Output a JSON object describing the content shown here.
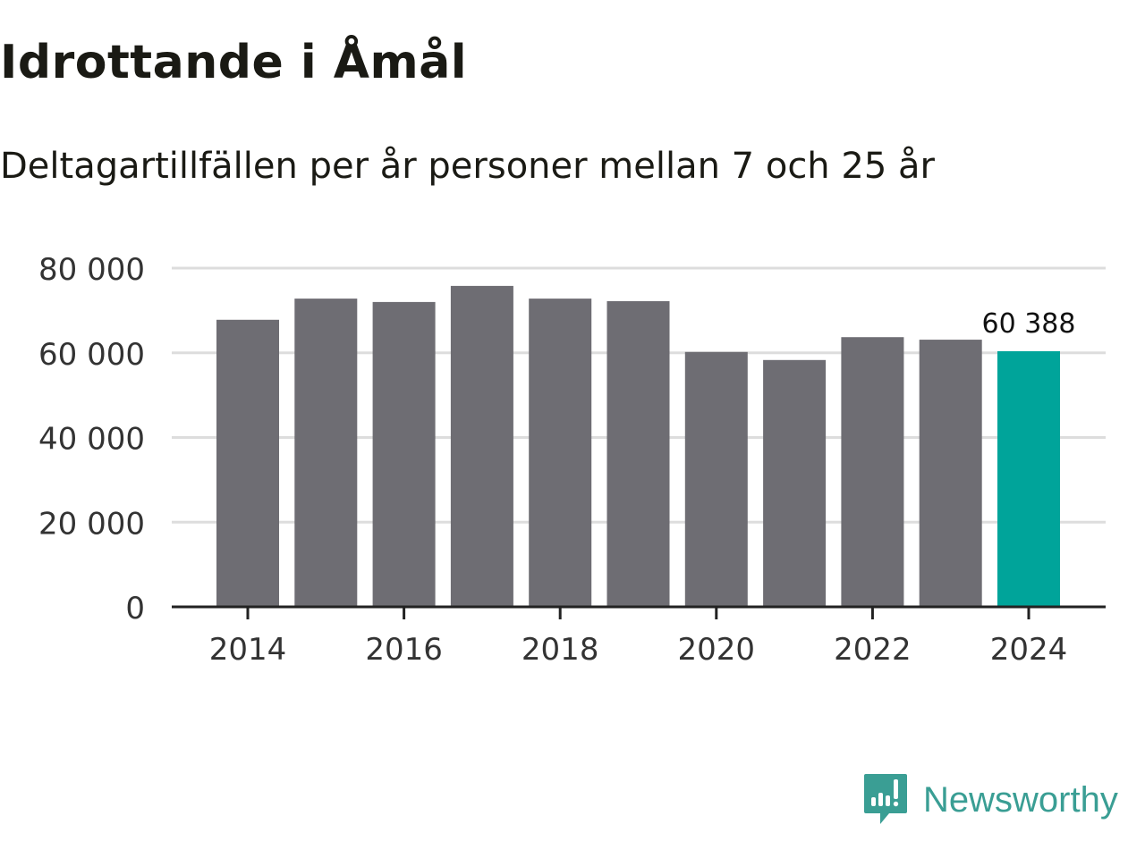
{
  "title": "Idrottande i Åmål",
  "subtitle": "Deltagartillfällen per år personer mellan 7 och 25 år",
  "brand": {
    "name": "Newsworthy",
    "color": "#3a9e94"
  },
  "colors": {
    "bar": "#6e6d73",
    "highlight": "#00a49a",
    "grid": "#dddddd",
    "axis": "#222222"
  },
  "chart_data": {
    "type": "bar",
    "title": "Idrottande i Åmål",
    "subtitle": "Deltagartillfällen per år personer mellan 7 och 25 år",
    "xlabel": "",
    "ylabel": "",
    "categories": [
      2014,
      2015,
      2016,
      2017,
      2018,
      2019,
      2020,
      2021,
      2022,
      2023,
      2024
    ],
    "values": [
      67800,
      72800,
      72000,
      75800,
      72800,
      72200,
      60200,
      58300,
      63700,
      63100,
      60388
    ],
    "highlight_index": 10,
    "data_labels": [
      {
        "index": 10,
        "text": "60 388"
      }
    ],
    "ylim": [
      0,
      80000
    ],
    "yticks": [
      0,
      20000,
      40000,
      60000,
      80000
    ],
    "ytick_labels": [
      "0",
      "20 000",
      "40 000",
      "60 000",
      "80 000"
    ],
    "xticks": [
      2014,
      2016,
      2018,
      2020,
      2022,
      2024
    ],
    "xtick_labels": [
      "2014",
      "2016",
      "2018",
      "2020",
      "2022",
      "2024"
    ],
    "grid": true
  }
}
